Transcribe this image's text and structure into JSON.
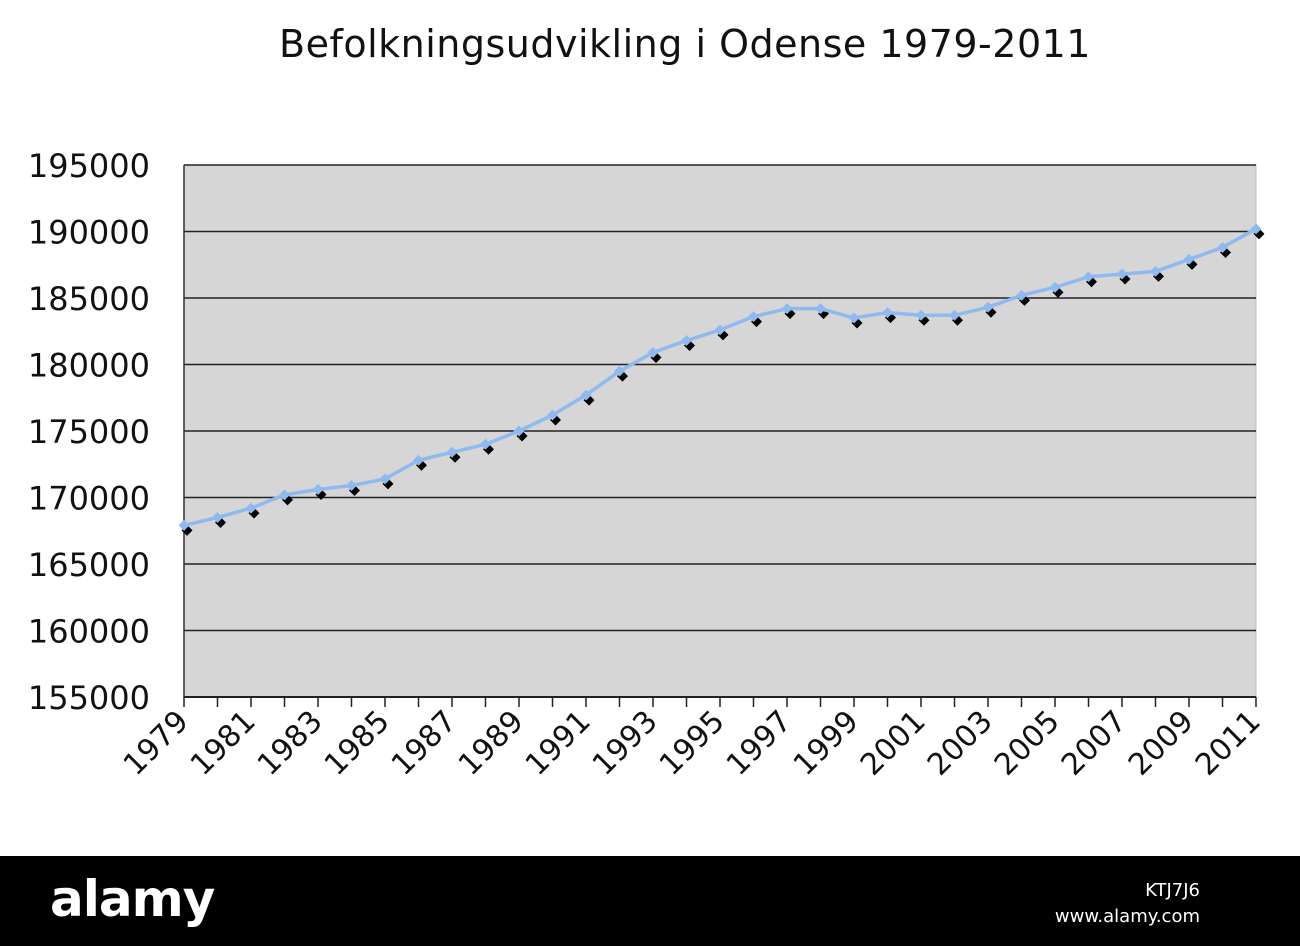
{
  "chart_data": {
    "type": "line",
    "title": "Befolkningsudvikling i Odense 1979-2011",
    "xlabel": "",
    "ylabel": "",
    "ylim": [
      155000,
      195000
    ],
    "yticks": [
      155000,
      160000,
      165000,
      170000,
      175000,
      180000,
      185000,
      190000,
      195000
    ],
    "ytick_labels": [
      "155000",
      "160000",
      "165000",
      "170000",
      "175000",
      "180000",
      "185000",
      "190000",
      "195000"
    ],
    "x": [
      1979,
      1980,
      1981,
      1982,
      1983,
      1984,
      1985,
      1986,
      1987,
      1988,
      1989,
      1990,
      1991,
      1992,
      1993,
      1994,
      1995,
      1996,
      1997,
      1998,
      1999,
      2000,
      2001,
      2002,
      2003,
      2004,
      2005,
      2006,
      2007,
      2008,
      2009,
      2010,
      2011
    ],
    "xtick_labels": [
      "1979",
      "1981",
      "1983",
      "1985",
      "1987",
      "1989",
      "1991",
      "1993",
      "1995",
      "1997",
      "1999",
      "2001",
      "2003",
      "2005",
      "2007",
      "2009",
      "2011"
    ],
    "series": [
      {
        "values": [
          167900,
          168500,
          169200,
          170200,
          170600,
          170900,
          171400,
          172800,
          173400,
          174000,
          175000,
          176200,
          177700,
          179500,
          180900,
          181800,
          182600,
          183600,
          184200,
          184200,
          183500,
          183900,
          183700,
          183700,
          184300,
          185200,
          185800,
          186600,
          186800,
          187000,
          187900,
          188800,
          190200
        ]
      }
    ],
    "grid": true,
    "legend": "none",
    "colors": {
      "line": "#8fbaf0",
      "marker_shadow": "#000000",
      "plot_bg": "#d6d6d6",
      "gridline": "#222222"
    }
  },
  "footer": {
    "logo": "alamy",
    "image_id": "KTJ7J6",
    "url": "www.alamy.com"
  }
}
